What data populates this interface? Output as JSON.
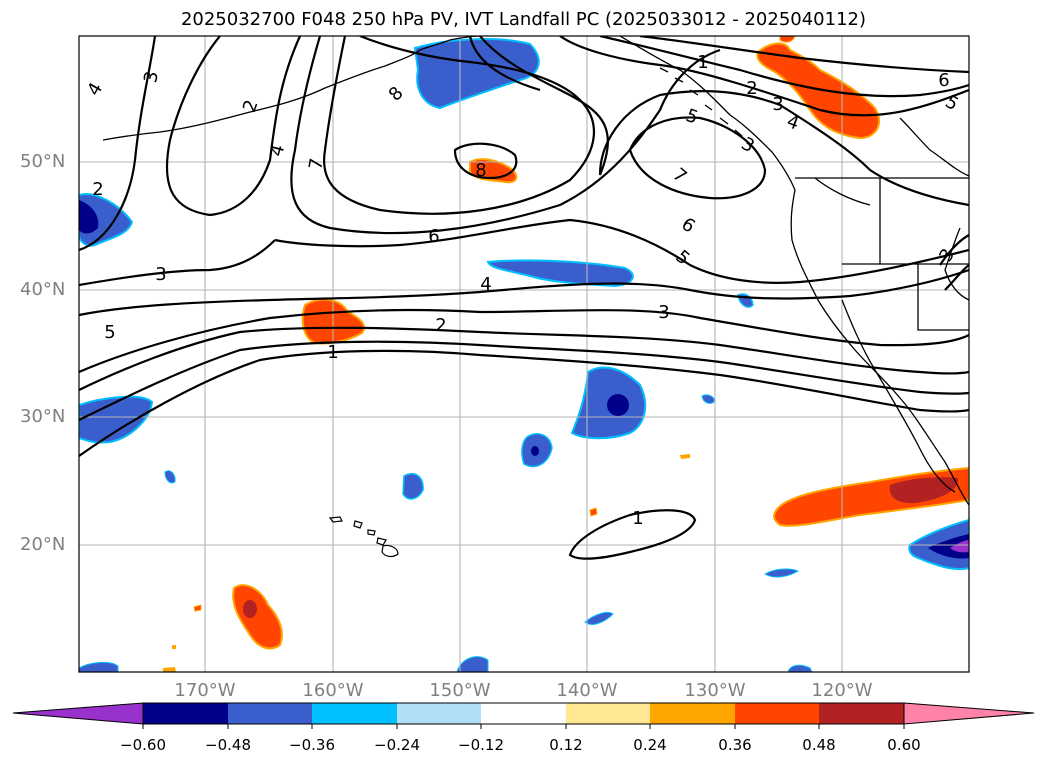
{
  "title": "2025032700 F048 250 hPa PV, IVT Landfall PC (2025033012 - 2025040112)",
  "lat_labels": [
    "50°N",
    "40°N",
    "30°N",
    "20°N"
  ],
  "lon_labels": [
    "170°W",
    "160°W",
    "150°W",
    "140°W",
    "130°W",
    "120°W"
  ],
  "contour_labels": [
    "4",
    "3",
    "2",
    "8",
    "2",
    "4",
    "7",
    "8",
    "6",
    "4",
    "3",
    "2",
    "1",
    "5",
    "3",
    "5",
    "1",
    "2",
    "3",
    "4",
    "6",
    "5",
    "7",
    "6",
    "5",
    "3",
    "3",
    "1"
  ],
  "colorbar": {
    "ticks": [
      "−0.60",
      "−0.48",
      "−0.36",
      "−0.24",
      "−0.12",
      "0.12",
      "0.24",
      "0.36",
      "0.48",
      "0.60"
    ],
    "colors": [
      "#9932cc",
      "#00008b",
      "#3a5fcd",
      "#00bfff",
      "#b0e0f8",
      "#ffffff",
      "#ffe891",
      "#ffa500",
      "#ff4500",
      "#b22222",
      "#ff82a9"
    ]
  }
}
